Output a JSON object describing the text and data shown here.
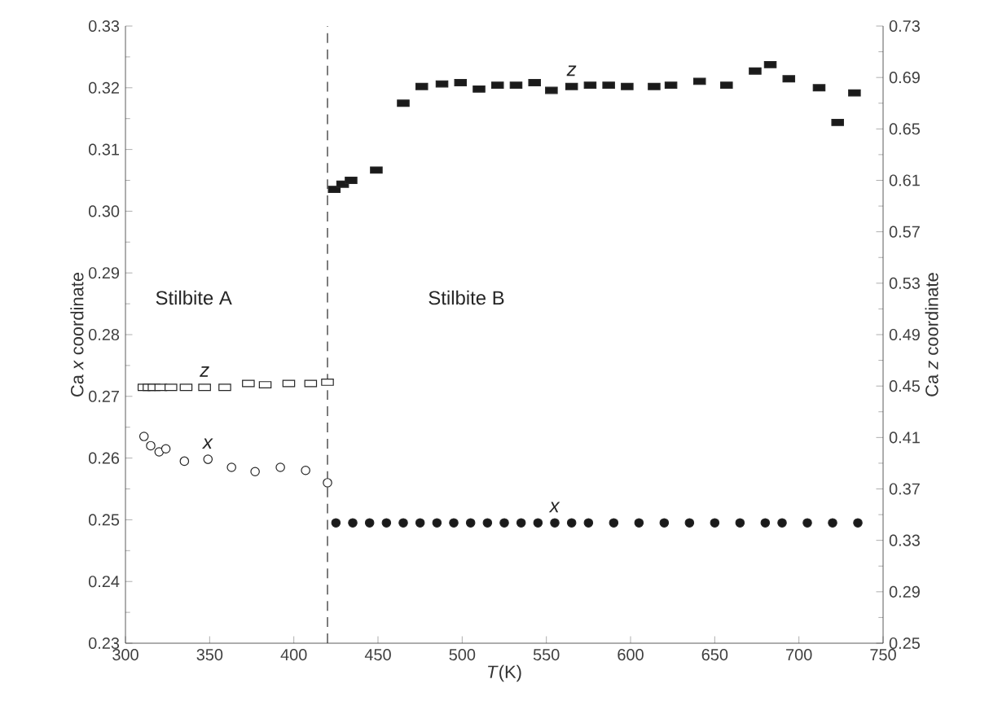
{
  "chart_data": {
    "type": "scatter",
    "xlabel": "*T*(K)",
    "ylabel": "Ca *x* coordinate",
    "y2label": "Ca *z* coordinate",
    "xlim": [
      300,
      750
    ],
    "xticks": [
      300,
      350,
      400,
      450,
      500,
      550,
      600,
      650,
      700,
      750
    ],
    "ylim": [
      0.23,
      0.33
    ],
    "yticks": [
      0.23,
      0.24,
      0.25,
      0.26,
      0.27,
      0.28,
      0.29,
      {
        "value": 0.3,
        "label": "0.30"
      },
      0.31,
      0.32,
      0.33
    ],
    "y2lim": [
      0.25,
      0.73
    ],
    "y2ticks": [
      {
        "value": 0.25,
        "label": "0.25"
      },
      0.29,
      0.33,
      0.37,
      0.41,
      0.45,
      0.49,
      0.53,
      0.57,
      0.61,
      0.65,
      0.69,
      0.73
    ],
    "series": [
      {
        "name": "*x*",
        "color": "#ffffff",
        "marker": "circle",
        "x": [
          311,
          315,
          320,
          324,
          335,
          349,
          363,
          377,
          392,
          407,
          420
        ],
        "values": [
          0.2635,
          0.262,
          0.261,
          0.2615,
          0.2595,
          0.2598,
          0.2585,
          0.2578,
          0.2585,
          0.258,
          0.256
        ]
      },
      {
        "name": "*z*",
        "color": "#ffffff",
        "marker": "square",
        "axis": "y2",
        "x": [
          311,
          314,
          317,
          321,
          327,
          336,
          347,
          359,
          373,
          383,
          397,
          410,
          420
        ],
        "values": [
          0.449,
          0.449,
          0.449,
          0.449,
          0.449,
          0.449,
          0.449,
          0.449,
          0.452,
          0.451,
          0.452,
          0.452,
          0.453
        ]
      },
      {
        "name": "*x*",
        "color": "#1a1a1a",
        "marker": "circle",
        "x": [
          425,
          435,
          445,
          455,
          465,
          475,
          485,
          495,
          505,
          515,
          525,
          535,
          545,
          555,
          565,
          575,
          590,
          605,
          620,
          635,
          650,
          665,
          680,
          690,
          705,
          720,
          735
        ],
        "values": [
          0.2495,
          0.2495,
          0.2495,
          0.2495,
          0.2495,
          0.2495,
          0.2495,
          0.2495,
          0.2495,
          0.2495,
          0.2495,
          0.2495,
          0.2495,
          0.2495,
          0.2495,
          0.2495,
          0.2495,
          0.2495,
          0.2495,
          0.2495,
          0.2495,
          0.2495,
          0.2495,
          0.2495,
          0.2495,
          0.2495,
          0.2495
        ]
      },
      {
        "name": "*z*",
        "color": "#1a1a1a",
        "marker": "square",
        "axis": "y2",
        "x": [
          424,
          429,
          434,
          449,
          465,
          476,
          488,
          499,
          510,
          521,
          532,
          543,
          553,
          565,
          576,
          587,
          598,
          614,
          624,
          641,
          657,
          674,
          683,
          694,
          712,
          723,
          733
        ],
        "values": [
          0.603,
          0.607,
          0.61,
          0.618,
          0.67,
          0.683,
          0.685,
          0.686,
          0.681,
          0.684,
          0.684,
          0.686,
          0.68,
          0.683,
          0.684,
          0.684,
          0.683,
          0.683,
          0.684,
          0.687,
          0.684,
          0.695,
          0.7,
          0.689,
          0.682,
          0.655,
          0.678
        ]
      }
    ],
    "ref_lines": [
      {
        "axis": "x",
        "value": 420,
        "line_style": "dashed"
      }
    ],
    "annotations": [
      "Stilbite A",
      "Stilbite B"
    ]
  }
}
